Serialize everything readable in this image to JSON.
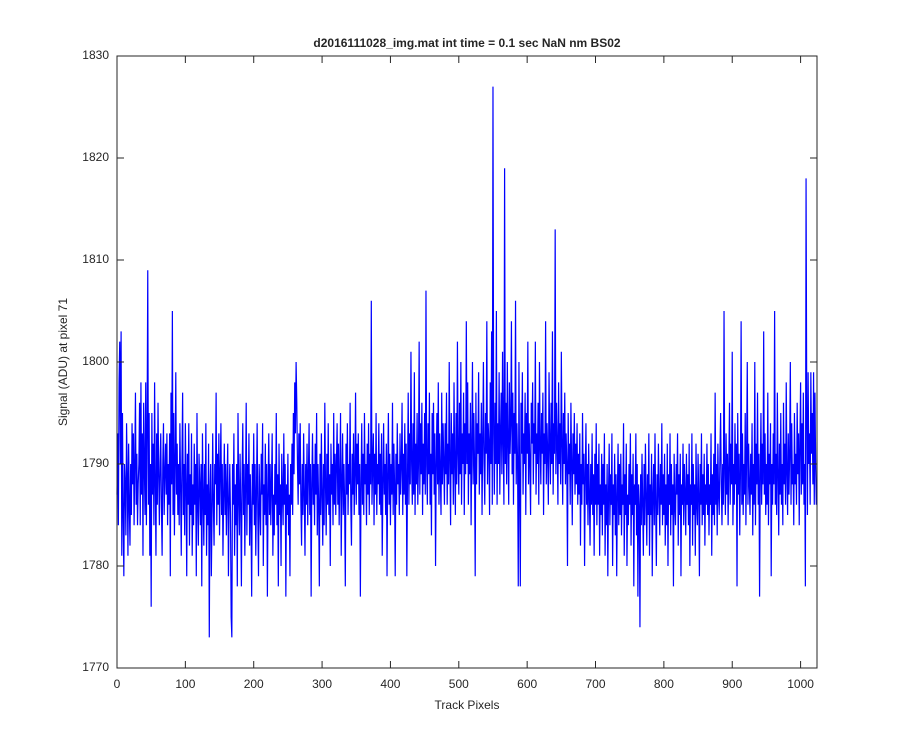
{
  "chart_data": {
    "type": "line",
    "title": "d2016111028_img.mat int time = 0.1 sec  NaN nm BS02",
    "xlabel": "Track Pixels",
    "ylabel": "Signal (ADU) at pixel 71",
    "xlim": [
      0,
      1024
    ],
    "xticks": [
      0,
      100,
      200,
      300,
      400,
      500,
      600,
      700,
      800,
      900,
      1000
    ],
    "ylim": [
      1770,
      1830
    ],
    "yticks": [
      1770,
      1780,
      1790,
      1800,
      1810,
      1820,
      1830
    ],
    "grid": false,
    "series": [
      {
        "color": "#0000ff",
        "values": [
          1787,
          1793,
          1784,
          1798,
          1802,
          1790,
          1803,
          1781,
          1795,
          1785,
          1779,
          1790,
          1788,
          1783,
          1794,
          1789,
          1781,
          1792,
          1786,
          1782,
          1790,
          1785,
          1794,
          1788,
          1793,
          1784,
          1790,
          1797,
          1786,
          1791,
          1784,
          1788,
          1790,
          1796,
          1784,
          1798,
          1787,
          1793,
          1781,
          1796,
          1790,
          1785,
          1798,
          1784,
          1793,
          1809,
          1786,
          1795,
          1781,
          1790,
          1776,
          1795,
          1787,
          1792,
          1784,
          1798,
          1788,
          1781,
          1793,
          1786,
          1796,
          1789,
          1784,
          1790,
          1793,
          1786,
          1781,
          1790,
          1794,
          1785,
          1789,
          1792,
          1787,
          1793,
          1784,
          1790,
          1786,
          1793,
          1779,
          1797,
          1788,
          1805,
          1785,
          1795,
          1783,
          1790,
          1799,
          1787,
          1792,
          1785,
          1790,
          1784,
          1794,
          1788,
          1781,
          1790,
          1797,
          1785,
          1790,
          1783,
          1794,
          1788,
          1779,
          1791,
          1786,
          1794,
          1782,
          1789,
          1785,
          1793,
          1781,
          1788,
          1784,
          1792,
          1786,
          1790,
          1779,
          1795,
          1786,
          1782,
          1791,
          1788,
          1784,
          1790,
          1778,
          1793,
          1787,
          1782,
          1790,
          1785,
          1794,
          1781,
          1788,
          1784,
          1792,
          1773,
          1787,
          1790,
          1779,
          1785,
          1793,
          1786,
          1782,
          1790,
          1788,
          1797,
          1784,
          1791,
          1786,
          1793,
          1783,
          1789,
          1794,
          1785,
          1790,
          1781,
          1787,
          1792,
          1785,
          1790,
          1783,
          1788,
          1792,
          1779,
          1786,
          1790,
          1785,
          1775,
          1773,
          1790,
          1786,
          1793,
          1781,
          1788,
          1784,
          1790,
          1778,
          1795,
          1787,
          1783,
          1791,
          1786,
          1778,
          1789,
          1794,
          1785,
          1790,
          1781,
          1788,
          1796,
          1783,
          1790,
          1786,
          1793,
          1782,
          1789,
          1785,
          1777,
          1790,
          1786,
          1793,
          1784,
          1790,
          1781,
          1787,
          1794,
          1785,
          1779,
          1790,
          1786,
          1783,
          1791,
          1787,
          1794,
          1780,
          1788,
          1785,
          1792,
          1784,
          1790,
          1777,
          1787,
          1793,
          1785,
          1790,
          1784,
          1788,
          1793,
          1781,
          1787,
          1783,
          1790,
          1786,
          1795,
          1784,
          1789,
          1778,
          1792,
          1785,
          1788,
          1780,
          1791,
          1787,
          1784,
          1793,
          1786,
          1790,
          1777,
          1788,
          1785,
          1791,
          1783,
          1787,
          1779,
          1790,
          1786,
          1792,
          1785,
          1795,
          1789,
          1798,
          1793,
          1800,
          1796,
          1790,
          1786,
          1793,
          1788,
          1794,
          1786,
          1782,
          1790,
          1785,
          1793,
          1787,
          1781,
          1790,
          1786,
          1792,
          1784,
          1789,
          1794,
          1785,
          1790,
          1777,
          1788,
          1793,
          1786,
          1790,
          1784,
          1792,
          1787,
          1795,
          1783,
          1790,
          1786,
          1778,
          1791,
          1785,
          1793,
          1787,
          1782,
          1790,
          1784,
          1796,
          1788,
          1783,
          1791,
          1786,
          1794,
          1785,
          1789,
          1780,
          1792,
          1787,
          1790,
          1784,
          1795,
          1786,
          1791,
          1785,
          1790,
          1794,
          1786,
          1792,
          1784,
          1789,
          1795,
          1781,
          1788,
          1793,
          1785,
          1790,
          1786,
          1778,
          1792,
          1787,
          1794,
          1785,
          1790,
          1788,
          1796,
          1786,
          1782,
          1791,
          1787,
          1793,
          1785,
          1789,
          1797,
          1786,
          1792,
          1788,
          1793,
          1785,
          1790,
          1777,
          1788,
          1794,
          1786,
          1791,
          1785,
          1795,
          1788,
          1790,
          1784,
          1792,
          1787,
          1794,
          1785,
          1791,
          1788,
          1806,
          1786,
          1790,
          1793,
          1784,
          1791,
          1787,
          1795,
          1785,
          1790,
          1788,
          1794,
          1786,
          1791,
          1785,
          1793,
          1781,
          1788,
          1794,
          1787,
          1790,
          1785,
          1792,
          1779,
          1789,
          1795,
          1786,
          1791,
          1784,
          1790,
          1787,
          1796,
          1785,
          1792,
          1788,
          1779,
          1791,
          1786,
          1794,
          1788,
          1790,
          1785,
          1793,
          1787,
          1790,
          1796,
          1785,
          1791,
          1787,
          1794,
          1786,
          1792,
          1779,
          1789,
          1797,
          1786,
          1793,
          1788,
          1801,
          1790,
          1786,
          1794,
          1787,
          1799,
          1785,
          1792,
          1788,
          1795,
          1786,
          1790,
          1802,
          1787,
          1794,
          1789,
          1796,
          1785,
          1792,
          1788,
          1795,
          1787,
          1807,
          1790,
          1786,
          1794,
          1789,
          1797,
          1786,
          1791,
          1783,
          1795,
          1789,
          1796,
          1787,
          1793,
          1780,
          1790,
          1795,
          1788,
          1798,
          1786,
          1793,
          1789,
          1785,
          1797,
          1788,
          1794,
          1790,
          1786,
          1794,
          1789,
          1797,
          1786,
          1792,
          1788,
          1800,
          1790,
          1784,
          1795,
          1789,
          1793,
          1786,
          1798,
          1790,
          1785,
          1795,
          1788,
          1802,
          1791,
          1787,
          1796,
          1789,
          1800,
          1786,
          1793,
          1790,
          1797,
          1785,
          1794,
          1789,
          1804,
          1790,
          1798,
          1786,
          1793,
          1789,
          1796,
          1784,
          1792,
          1800,
          1788,
          1795,
          1790,
          1779,
          1797,
          1788,
          1794,
          1791,
          1799,
          1787,
          1793,
          1789,
          1796,
          1785,
          1792,
          1800,
          1790,
          1786,
          1795,
          1791,
          1804,
          1788,
          1794,
          1792,
          1785,
          1798,
          1790,
          1803,
          1786,
          1827,
          1793,
          1787,
          1796,
          1790,
          1805,
          1786,
          1794,
          1790,
          1799,
          1787,
          1793,
          1797,
          1789,
          1801,
          1792,
          1786,
          1819,
          1790,
          1796,
          1788,
          1800,
          1792,
          1786,
          1798,
          1791,
          1794,
          1804,
          1789,
          1797,
          1786,
          1795,
          1791,
          1806,
          1788,
          1794,
          1790,
          1778,
          1800,
          1787,
          1778,
          1796,
          1791,
          1799,
          1787,
          1793,
          1790,
          1797,
          1785,
          1795,
          1791,
          1802,
          1788,
          1794,
          1790,
          1785,
          1796,
          1792,
          1798,
          1788,
          1794,
          1791,
          1802,
          1787,
          1793,
          1790,
          1796,
          1786,
          1800,
          1792,
          1788,
          1795,
          1791,
          1797,
          1785,
          1793,
          1790,
          1804,
          1788,
          1794,
          1791,
          1786,
          1799,
          1792,
          1788,
          1796,
          1790,
          1803,
          1787,
          1794,
          1791,
          1813,
          1789,
          1796,
          1792,
          1786,
          1798,
          1790,
          1794,
          1788,
          1801,
          1792,
          1786,
          1795,
          1790,
          1797,
          1788,
          1793,
          1790,
          1780,
          1795,
          1789,
          1792,
          1786,
          1796,
          1790,
          1784,
          1793,
          1789,
          1795,
          1787,
          1792,
          1788,
          1794,
          1786,
          1791,
          1787,
          1793,
          1782,
          1790,
          1786,
          1795,
          1788,
          1791,
          1780,
          1789,
          1794,
          1786,
          1790,
          1784,
          1792,
          1787,
          1782,
          1790,
          1786,
          1793,
          1785,
          1789,
          1781,
          1791,
          1786,
          1794,
          1784,
          1790,
          1786,
          1792,
          1781,
          1788,
          1785,
          1791,
          1783,
          1790,
          1786,
          1793,
          1781,
          1788,
          1784,
          1790,
          1779,
          1787,
          1792,
          1784,
          1789,
          1786,
          1793,
          1780,
          1788,
          1785,
          1791,
          1783,
          1789,
          1779,
          1787,
          1792,
          1784,
          1790,
          1785,
          1791,
          1783,
          1788,
          1786,
          1794,
          1781,
          1789,
          1785,
          1792,
          1780,
          1787,
          1784,
          1790,
          1786,
          1793,
          1782,
          1789,
          1785,
          1791,
          1778,
          1788,
          1786,
          1793,
          1783,
          1790,
          1777,
          1788,
          1786,
          1774,
          1789,
          1784,
          1791,
          1786,
          1781,
          1790,
          1784,
          1792,
          1787,
          1782,
          1789,
          1785,
          1793,
          1781,
          1788,
          1785,
          1791,
          1779,
          1787,
          1790,
          1784,
          1793,
          1786,
          1780,
          1789,
          1785,
          1792,
          1787,
          1783,
          1790,
          1786,
          1794,
          1784,
          1789,
          1785,
          1791,
          1782,
          1788,
          1784,
          1792,
          1780,
          1789,
          1786,
          1793,
          1783,
          1790,
          1785,
          1788,
          1778,
          1791,
          1786,
          1784,
          1790,
          1787,
          1793,
          1782,
          1789,
          1785,
          1791,
          1779,
          1788,
          1786,
          1792,
          1784,
          1790,
          1787,
          1783,
          1791,
          1786,
          1789,
          1784,
          1792,
          1780,
          1788,
          1786,
          1793,
          1782,
          1790,
          1785,
          1788,
          1781,
          1792,
          1786,
          1784,
          1791,
          1787,
          1779,
          1790,
          1786,
          1793,
          1784,
          1789,
          1785,
          1791,
          1782,
          1788,
          1786,
          1792,
          1785,
          1790,
          1783,
          1788,
          1786,
          1793,
          1781,
          1789,
          1785,
          1791,
          1784,
          1797,
          1786,
          1790,
          1783,
          1792,
          1787,
          1785,
          1791,
          1795,
          1788,
          1784,
          1790,
          1786,
          1805,
          1789,
          1785,
          1793,
          1787,
          1791,
          1784,
          1790,
          1796,
          1786,
          1792,
          1788,
          1801,
          1784,
          1790,
          1786,
          1794,
          1788,
          1792,
          1778,
          1795,
          1787,
          1791,
          1783,
          1789,
          1804,
          1786,
          1793,
          1785,
          1790,
          1787,
          1795,
          1784,
          1791,
          1800,
          1786,
          1792,
          1788,
          1785,
          1791,
          1787,
          1794,
          1783,
          1790,
          1786,
          1800,
          1784,
          1792,
          1788,
          1797,
          1786,
          1791,
          1777,
          1789,
          1795,
          1786,
          1792,
          1788,
          1803,
          1787,
          1793,
          1785,
          1790,
          1786,
          1797,
          1784,
          1791,
          1788,
          1794,
          1779,
          1790,
          1786,
          1793,
          1788,
          1805,
          1786,
          1791,
          1785,
          1797,
          1789,
          1783,
          1792,
          1787,
          1795,
          1786,
          1790,
          1784,
          1796,
          1788,
          1792,
          1786,
          1798,
          1789,
          1785,
          1793,
          1787,
          1791,
          1800,
          1786,
          1794,
          1788,
          1790,
          1784,
          1795,
          1788,
          1791,
          1786,
          1796,
          1789,
          1793,
          1784,
          1792,
          1798,
          1787,
          1794,
          1788,
          1797,
          1786,
          1790,
          1778,
          1818,
          1795,
          1785,
          1799,
          1790,
          1793,
          1786,
          1799,
          1791,
          1795,
          1788,
          1799,
          1786,
          1797,
          1790,
          1786
        ]
      }
    ]
  }
}
